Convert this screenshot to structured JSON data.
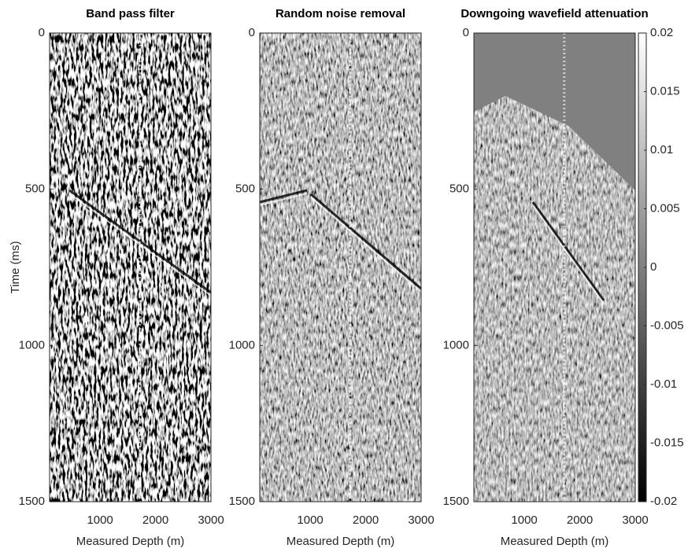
{
  "chart_data": [
    {
      "type": "image",
      "title": "Band pass filter",
      "x_label": "Measured Depth (m)",
      "y_label": "Time (ms)",
      "xlim": [
        90,
        3000
      ],
      "xticks": [
        1000,
        2000,
        3000
      ],
      "ylim": [
        0,
        1500
      ],
      "yticks": [
        0,
        500,
        1000,
        1500
      ],
      "y_reversed": true,
      "colormap": "gray"
    },
    {
      "type": "image",
      "title": "Random noise removal",
      "x_label": "Measured Depth (m)",
      "xlim": [
        90,
        3000
      ],
      "xticks": [
        1000,
        2000,
        3000
      ],
      "ylim": [
        0,
        1500
      ],
      "yticks": [
        0,
        500,
        1000,
        1500
      ],
      "y_reversed": true,
      "colormap": "gray"
    },
    {
      "type": "image",
      "title": "Downgoing wavefield attenuation",
      "x_label": "Measured Depth (m)",
      "xlim": [
        90,
        3000
      ],
      "xticks": [
        1000,
        2000,
        3000
      ],
      "ylim": [
        0,
        1500
      ],
      "yticks": [
        0,
        500,
        1000,
        1500
      ],
      "y_reversed": true,
      "colormap": "gray",
      "colorbar": {
        "lim": [
          -0.02,
          0.02
        ],
        "ticks": [
          0.02,
          0.015,
          0.01,
          0.005,
          0,
          -0.005,
          -0.01,
          -0.015,
          -0.02
        ]
      }
    }
  ]
}
